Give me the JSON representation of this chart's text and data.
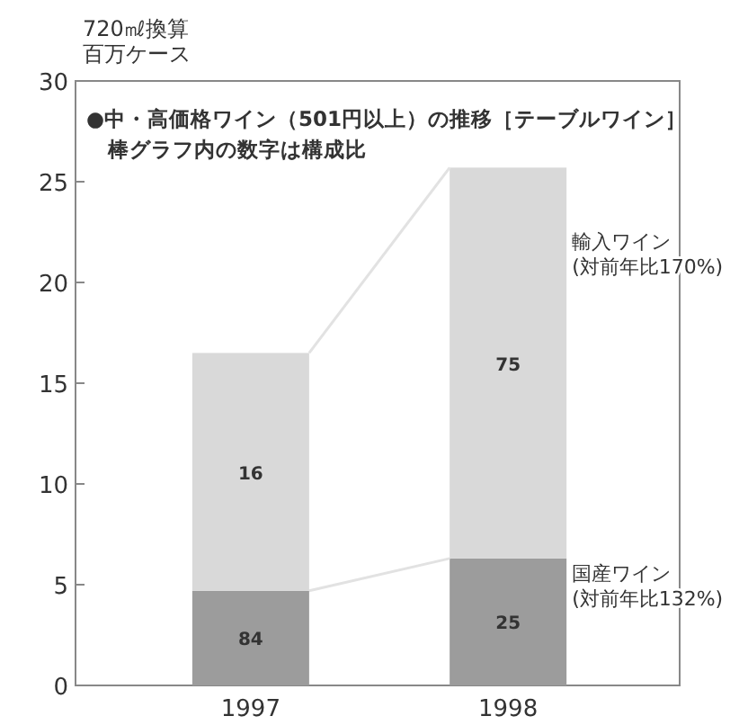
{
  "chart_data": {
    "type": "bar",
    "stacked": true,
    "title": "●中・高価格ワイン（501円以上）の推移［テーブルワイン］",
    "subtitle": "棒グラフ内の数字は構成比",
    "ylabel": "720㎖換算",
    "categories": [
      "1997",
      "1998"
    ],
    "series": [
      {
        "name": "国産ワイン",
        "color": "#9c9c9c",
        "values": [
          4.7,
          6.3
        ]
      },
      {
        "name": "輸入ワイン",
        "color": "#d9d9d9",
        "values": [
          11.8,
          19.4
        ]
      }
    ],
    "annotations": [
      "百万ケース",
      "(対前年比132%)",
      "(対前年比170%)",
      "84",
      "25",
      "16",
      "75"
    ],
    "ylim": [
      0,
      30
    ],
    "yticks": [
      0,
      5,
      10,
      15,
      20,
      25,
      30
    ],
    "grid": false
  }
}
